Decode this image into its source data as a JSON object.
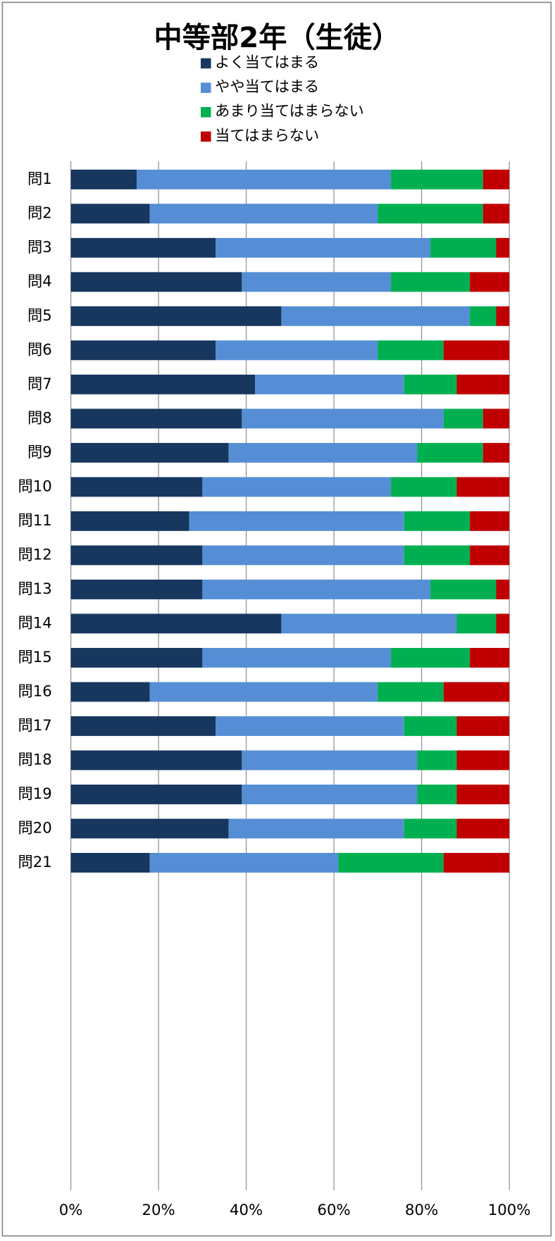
{
  "chart_data": {
    "type": "stacked_barh",
    "title": "中等部2年（生徒）",
    "categories": [
      "問1",
      "問2",
      "問3",
      "問4",
      "問5",
      "問6",
      "問7",
      "問8",
      "問9",
      "問10",
      "問11",
      "問12",
      "問13",
      "問14",
      "問15",
      "問16",
      "問17",
      "問18",
      "問19",
      "問20",
      "問21"
    ],
    "series": [
      {
        "name": "よく当てはまる",
        "color": "#17375e",
        "values": [
          15,
          18,
          33,
          39,
          48,
          33,
          42,
          39,
          36,
          30,
          27,
          30,
          30,
          48,
          30,
          18,
          33,
          39,
          39,
          36,
          18
        ]
      },
      {
        "name": "やや当てはまる",
        "color": "#558ed5",
        "values": [
          58,
          52,
          49,
          34,
          43,
          37,
          34,
          46,
          43,
          43,
          49,
          46,
          52,
          40,
          43,
          52,
          43,
          40,
          40,
          40,
          43
        ]
      },
      {
        "name": "あまり当てはまらない",
        "color": "#00b050",
        "values": [
          21,
          24,
          15,
          18,
          6,
          15,
          12,
          9,
          15,
          15,
          15,
          15,
          15,
          9,
          18,
          15,
          12,
          9,
          9,
          12,
          24
        ]
      },
      {
        "name": "当てはまらない",
        "color": "#c00000",
        "values": [
          6,
          6,
          3,
          9,
          3,
          15,
          12,
          6,
          6,
          12,
          9,
          9,
          3,
          3,
          9,
          15,
          12,
          12,
          12,
          12,
          15
        ]
      }
    ],
    "xlim": [
      0,
      100
    ],
    "xticks": [
      {
        "value": 0,
        "label": "0%"
      },
      {
        "value": 20,
        "label": "20%"
      },
      {
        "value": 40,
        "label": "40%"
      },
      {
        "value": 60,
        "label": "60%"
      },
      {
        "value": 80,
        "label": "80%"
      },
      {
        "value": 100,
        "label": "100%"
      }
    ],
    "grid": true,
    "legend": "top"
  }
}
